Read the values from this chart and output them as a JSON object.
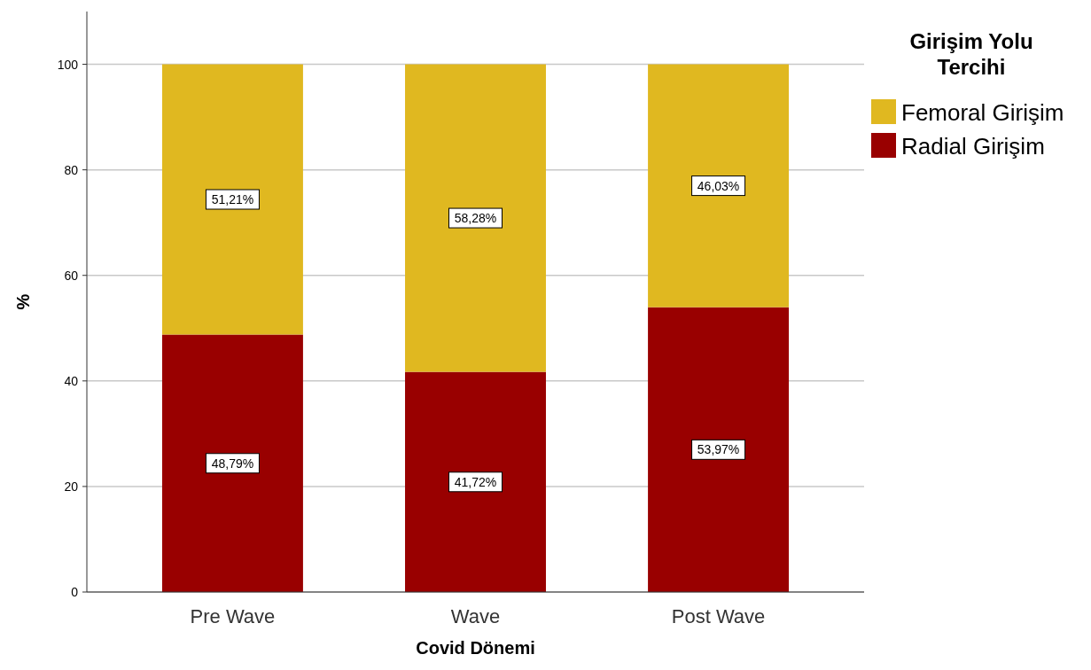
{
  "chart_data": {
    "type": "bar",
    "stacked": true,
    "categories": [
      "Pre Wave",
      "Wave",
      "Post Wave"
    ],
    "xlabel": "Covid Dönemi",
    "ylabel": "%",
    "legend_title": "Girişim Yolu Tercihi",
    "legend": "top right",
    "grid": "y",
    "ylim": [
      0,
      110
    ],
    "yticks": [
      0,
      20,
      40,
      60,
      80,
      100
    ],
    "series": [
      {
        "name": "Radial Girişim",
        "color": "#990000",
        "values": [
          48.79,
          41.72,
          53.97
        ],
        "value_labels": [
          "48,79%",
          "41,72%",
          "53,97%"
        ]
      },
      {
        "name": "Femoral Girişim",
        "color": "#e0b820",
        "values": [
          51.21,
          58.28,
          46.03
        ],
        "value_labels": [
          "51,21%",
          "58,28%",
          "46,03%"
        ]
      }
    ]
  }
}
